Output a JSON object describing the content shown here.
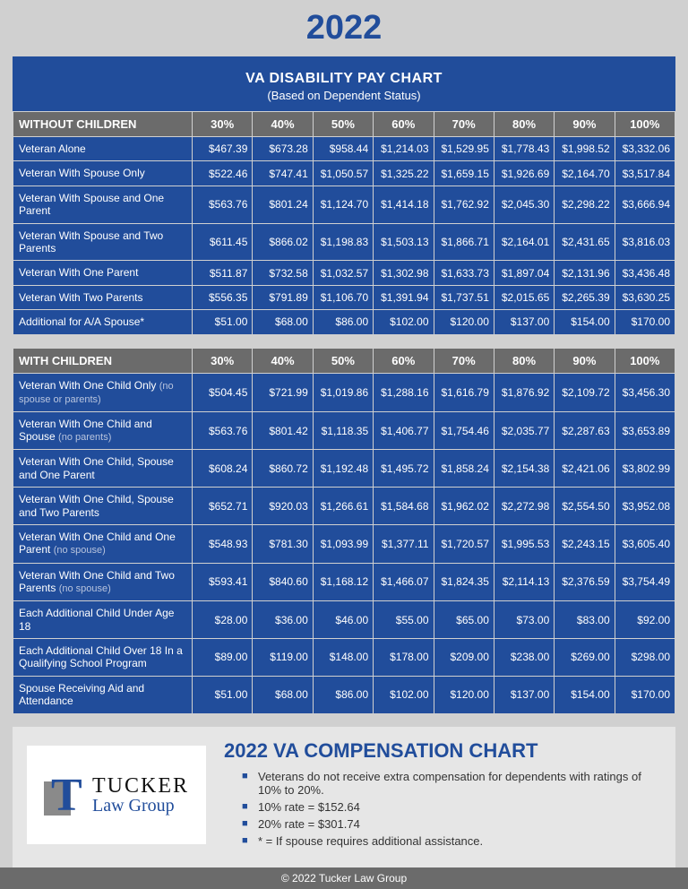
{
  "year": "2022",
  "header": {
    "title": "VA DISABILITY PAY CHART",
    "subtitle": "(Based on Dependent Status)"
  },
  "columns": [
    "30%",
    "40%",
    "50%",
    "60%",
    "70%",
    "80%",
    "90%",
    "100%"
  ],
  "section1": {
    "title": "WITHOUT CHILDREN",
    "rows": [
      {
        "label": "Veteran Alone",
        "sub": "",
        "vals": [
          "$467.39",
          "$673.28",
          "$958.44",
          "$1,214.03",
          "$1,529.95",
          "$1,778.43",
          "$1,998.52",
          "$3,332.06"
        ]
      },
      {
        "label": "Veteran With Spouse Only",
        "sub": "",
        "vals": [
          "$522.46",
          "$747.41",
          "$1,050.57",
          "$1,325.22",
          "$1,659.15",
          "$1,926.69",
          "$2,164.70",
          "$3,517.84"
        ]
      },
      {
        "label": "Veteran With Spouse and One Parent",
        "sub": "",
        "vals": [
          "$563.76",
          "$801.24",
          "$1,124.70",
          "$1,414.18",
          "$1,762.92",
          "$2,045.30",
          "$2,298.22",
          "$3,666.94"
        ]
      },
      {
        "label": "Veteran With Spouse and Two Parents",
        "sub": "",
        "vals": [
          "$611.45",
          "$866.02",
          "$1,198.83",
          "$1,503.13",
          "$1,866.71",
          "$2,164.01",
          "$2,431.65",
          "$3,816.03"
        ]
      },
      {
        "label": "Veteran With One Parent",
        "sub": "",
        "vals": [
          "$511.87",
          "$732.58",
          "$1,032.57",
          "$1,302.98",
          "$1,633.73",
          "$1,897.04",
          "$2,131.96",
          "$3,436.48"
        ]
      },
      {
        "label": "Veteran With Two Parents",
        "sub": "",
        "vals": [
          "$556.35",
          "$791.89",
          "$1,106.70",
          "$1,391.94",
          "$1,737.51",
          "$2,015.65",
          "$2,265.39",
          "$3,630.25"
        ]
      },
      {
        "label": "Additional for A/A Spouse*",
        "sub": "",
        "vals": [
          "$51.00",
          "$68.00",
          "$86.00",
          "$102.00",
          "$120.00",
          "$137.00",
          "$154.00",
          "$170.00"
        ]
      }
    ]
  },
  "section2": {
    "title": "WITH CHILDREN",
    "rows": [
      {
        "label": "Veteran With One Child Only",
        "sub": "(no spouse or parents)",
        "vals": [
          "$504.45",
          "$721.99",
          "$1,019.86",
          "$1,288.16",
          "$1,616.79",
          "$1,876.92",
          "$2,109.72",
          "$3,456.30"
        ]
      },
      {
        "label": "Veteran With One Child and Spouse",
        "sub": "(no parents)",
        "vals": [
          "$563.76",
          "$801.42",
          "$1,118.35",
          "$1,406.77",
          "$1,754.46",
          "$2,035.77",
          "$2,287.63",
          "$3,653.89"
        ]
      },
      {
        "label": "Veteran With One Child, Spouse and One Parent",
        "sub": "",
        "vals": [
          "$608.24",
          "$860.72",
          "$1,192.48",
          "$1,495.72",
          "$1,858.24",
          "$2,154.38",
          "$2,421.06",
          "$3,802.99"
        ]
      },
      {
        "label": "Veteran With One Child, Spouse and Two Parents",
        "sub": "",
        "vals": [
          "$652.71",
          "$920.03",
          "$1,266.61",
          "$1,584.68",
          "$1,962.02",
          "$2,272.98",
          "$2,554.50",
          "$3,952.08"
        ]
      },
      {
        "label": "Veteran With One Child and One Parent ",
        "sub": "(no spouse)",
        "vals": [
          "$548.93",
          "$781.30",
          "$1,093.99",
          "$1,377.11",
          "$1,720.57",
          "$1,995.53",
          "$2,243.15",
          "$3,605.40"
        ]
      },
      {
        "label": "Veteran With One Child and Two Parents ",
        "sub": "(no spouse)",
        "vals": [
          "$593.41",
          "$840.60",
          "$1,168.12",
          "$1,466.07",
          "$1,824.35",
          "$2,114.13",
          "$2,376.59",
          "$3,754.49"
        ]
      },
      {
        "label": "Each Additional Child Under Age 18",
        "sub": "",
        "vals": [
          "$28.00",
          "$36.00",
          "$46.00",
          "$55.00",
          "$65.00",
          "$73.00",
          "$83.00",
          "$92.00"
        ]
      },
      {
        "label": "Each Additional Child Over 18 In a Qualifying School Program",
        "sub": "",
        "vals": [
          "$89.00",
          "$119.00",
          "$148.00",
          "$178.00",
          "$209.00",
          "$238.00",
          "$269.00",
          "$298.00"
        ]
      },
      {
        "label": "Spouse Receiving Aid and Attendance",
        "sub": "",
        "vals": [
          "$51.00",
          "$68.00",
          "$86.00",
          "$102.00",
          "$120.00",
          "$137.00",
          "$154.00",
          "$170.00"
        ]
      }
    ]
  },
  "footer": {
    "compTitle": "2022 VA COMPENSATION CHART",
    "bullets": [
      "Veterans do not receive extra compensation for dependents with ratings of 10% to 20%.",
      "10% rate = $152.64",
      "20% rate = $301.74",
      "* = If spouse requires additional assistance."
    ],
    "logo": {
      "l1": "TUCKER",
      "l2": "Law Group"
    },
    "copyright": "© 2022 Tucker Law Group"
  },
  "style": {
    "primary": "#214d9b",
    "headerGray": "#6b6b6b",
    "bgGray": "#d0d0d0",
    "footerBg": "#e6e6e6",
    "cellText": "#ffffff"
  }
}
